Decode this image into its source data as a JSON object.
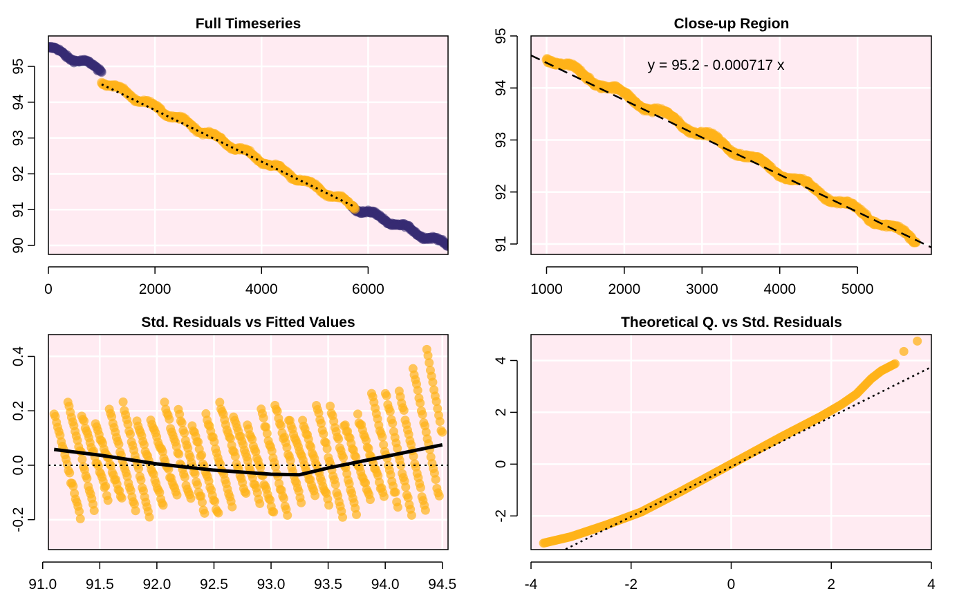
{
  "colors": {
    "panel_bg": "#ffebf2",
    "grid": "#ffffff",
    "orange": "#ffb31a",
    "purple": "#362b73",
    "line": "#000000"
  },
  "chart_data": [
    {
      "type": "scatter",
      "title": "Full Timeseries",
      "xlabel": "",
      "ylabel": "",
      "xlim": [
        0,
        7500
      ],
      "ylim": [
        89.75,
        95.85
      ],
      "xticks": [
        0,
        2000,
        4000,
        6000
      ],
      "yticks": [
        90,
        91,
        92,
        93,
        94,
        95
      ],
      "grid": true,
      "series": [
        {
          "color": "purple",
          "segments": [
            {
              "x0": 0,
              "x1": 1000,
              "y0": 95.52,
              "y1": 94.9
            },
            {
              "x0": 5700,
              "x1": 7500,
              "y0": 91.1,
              "y1": 90.0
            }
          ]
        },
        {
          "color": "orange",
          "segments": [
            {
              "x0": 1000,
              "x1": 5750,
              "y0": 94.6,
              "y1": 91.08
            }
          ]
        }
      ],
      "fit_line": {
        "style": "dotted",
        "x": [
          1000,
          5750
        ],
        "y": [
          94.5,
          91.08
        ]
      }
    },
    {
      "type": "scatter",
      "title": "Close-up Region",
      "xlabel": "",
      "ylabel": "",
      "xlim": [
        800,
        5950
      ],
      "ylim": [
        90.8,
        95.0
      ],
      "xticks": [
        1000,
        2000,
        3000,
        4000,
        5000
      ],
      "yticks": [
        91,
        92,
        93,
        94,
        95
      ],
      "grid": true,
      "annotation": "y = 95.2 - 0.000717 x",
      "series": [
        {
          "color": "orange",
          "segments": [
            {
              "x0": 1000,
              "x1": 5750,
              "y0": 94.6,
              "y1": 91.08
            }
          ]
        }
      ],
      "fit_line": {
        "style": "dashed",
        "intercept": 95.2,
        "slope": -0.000717
      }
    },
    {
      "type": "scatter",
      "title": "Std. Residuals vs Fitted Values",
      "xlabel": "",
      "ylabel": "",
      "xlim": [
        91.05,
        94.55
      ],
      "ylim": [
        -0.31,
        0.48
      ],
      "xticks": [
        91.0,
        91.5,
        92.0,
        92.5,
        93.0,
        93.5,
        94.0,
        94.5
      ],
      "xtick_labels": [
        "91.0",
        "91.5",
        "92.0",
        "92.5",
        "93.0",
        "93.5",
        "94.0",
        "94.5"
      ],
      "yticks": [
        -0.2,
        0.0,
        0.2,
        0.4
      ],
      "ytick_labels": [
        "-0.2",
        "0.0",
        "0.2",
        "0.4"
      ],
      "grid": true,
      "reference_line": {
        "style": "dotted",
        "y": 0
      },
      "smooth_line": {
        "x": [
          91.1,
          91.5,
          92.0,
          92.5,
          93.0,
          93.25,
          93.5,
          94.0,
          94.5
        ],
        "y": [
          0.058,
          0.037,
          0.005,
          -0.018,
          -0.033,
          -0.035,
          -0.01,
          0.032,
          0.075
        ]
      }
    },
    {
      "type": "scatter",
      "title": "Theoretical Q. vs Std. Residuals",
      "xlabel": "",
      "ylabel": "",
      "xlim": [
        -4,
        4
      ],
      "ylim": [
        -3.3,
        5.0
      ],
      "xticks": [
        -4,
        -2,
        0,
        2,
        4
      ],
      "yticks": [
        -2,
        0,
        2,
        4
      ],
      "grid": true,
      "reference_line": {
        "style": "dotted",
        "x": [
          -4,
          4
        ],
        "y": [
          -3.95,
          3.75
        ]
      },
      "qq_curve": {
        "x": [
          -3.75,
          -3.2,
          -2.5,
          -1.8,
          -1.0,
          0,
          1.0,
          1.8,
          2.2,
          2.5,
          2.8,
          3.0,
          3.3
        ],
        "y": [
          -3.05,
          -2.8,
          -2.35,
          -1.85,
          -1.05,
          0,
          1.05,
          1.85,
          2.3,
          2.7,
          3.3,
          3.6,
          3.9
        ]
      },
      "qq_outliers": {
        "x": [
          3.45,
          3.72
        ],
        "y": [
          4.35,
          4.75
        ]
      }
    }
  ]
}
